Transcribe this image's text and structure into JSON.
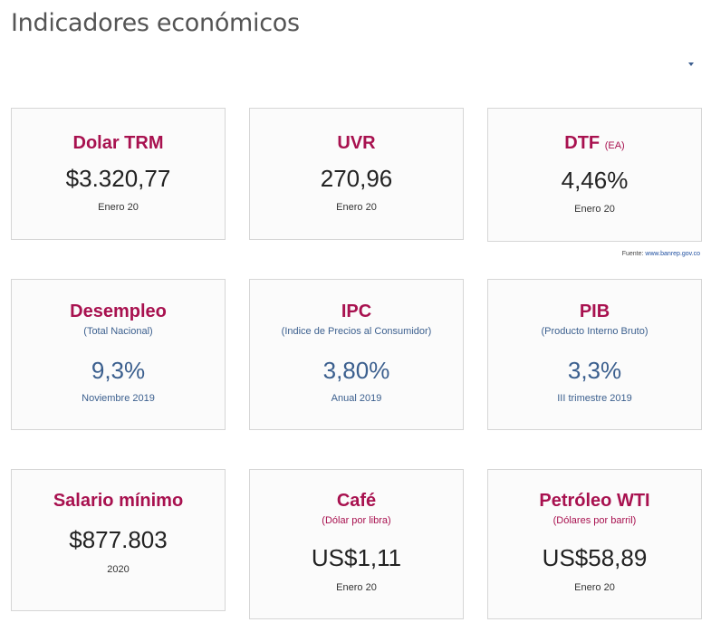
{
  "page": {
    "title": "Indicadores económicos"
  },
  "source": {
    "label": "Fuente:",
    "link": "www.banrep.gov.co"
  },
  "cards": [
    {
      "name": "Dolar TRM",
      "value": "$3.320,77",
      "date": "Enero 20"
    },
    {
      "name": "UVR",
      "value": "270,96",
      "date": "Enero 20"
    },
    {
      "name": "DTF",
      "tag": "(EA)",
      "value": "4,46%",
      "date": "Enero 20"
    },
    {
      "name": "Desempleo",
      "sub": "(Total Nacional)",
      "value": "9,3%",
      "date": "Noviembre 2019"
    },
    {
      "name": "IPC",
      "sub": "(Indice de Precios al Consumidor)",
      "value": "3,80%",
      "date": "Anual 2019"
    },
    {
      "name": "PIB",
      "sub": "(Producto Interno Bruto)",
      "value": "3,3%",
      "date": "III trimestre 2019"
    },
    {
      "name": "Salario mínimo",
      "value": "$877.803",
      "date": "2020"
    },
    {
      "name": "Café",
      "sub": "(Dólar por libra)",
      "value": "US$1,11",
      "date": "Enero 20"
    },
    {
      "name": "Petróleo WTI",
      "sub": "(Dólares por barril)",
      "value": "US$58,89",
      "date": "Enero 20"
    }
  ],
  "colors": {
    "accent": "#a8114f",
    "blue": "#3b5f8e",
    "border": "#d6d6d6"
  }
}
